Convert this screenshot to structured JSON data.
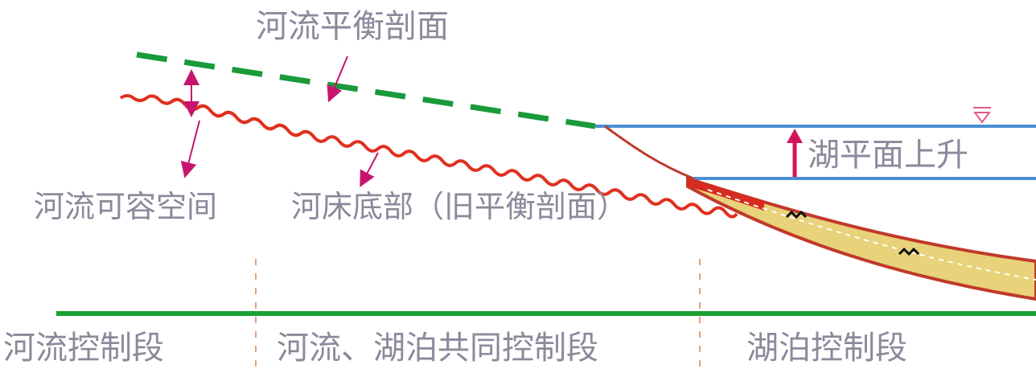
{
  "labels": {
    "balance_profile": "河流平衡剖面",
    "lake_rise": "湖平面上升",
    "river_space": "河流可容空间",
    "riverbed": "河床底部（旧平衡剖面）",
    "segment_river": "河流控制段",
    "segment_joint": "河流、湖泊共同控制段",
    "segment_lake": "湖泊控制段"
  },
  "colors": {
    "balance_profile_line": "#1a9a3a",
    "riverbed_line": "#e0301e",
    "lake_level_line": "#4a8fd4",
    "baseline": "#1aa033",
    "arrow": "#c8146e",
    "lake_rise_arrow": "#d4145a",
    "delta_fill": "#e8d27a",
    "delta_outline": "#c0392b",
    "label_text": "#8a8a9c"
  }
}
